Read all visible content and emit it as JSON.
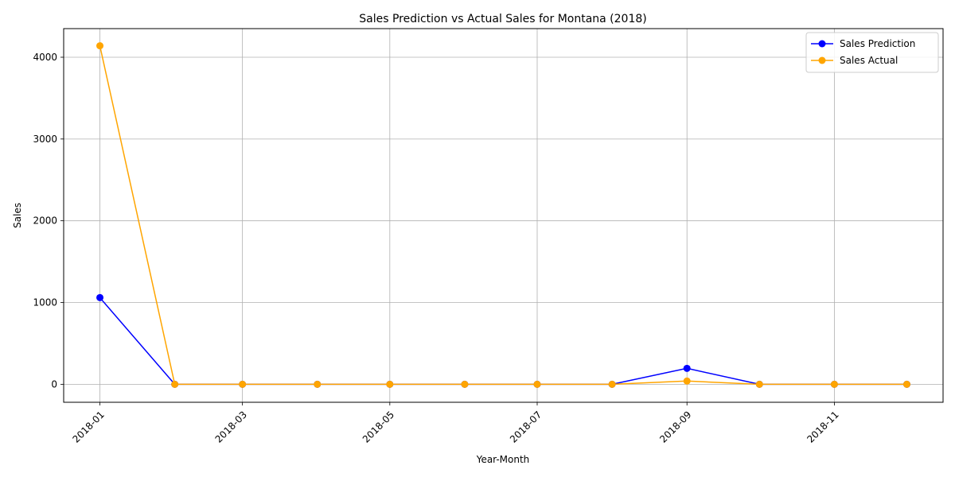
{
  "chart_data": {
    "type": "line",
    "title": "Sales Prediction vs Actual Sales for Montana (2018)",
    "xlabel": "Year-Month",
    "ylabel": "Sales",
    "x": [
      "2018-01-01",
      "2018-02-01",
      "2018-03-01",
      "2018-04-01",
      "2018-05-01",
      "2018-06-01",
      "2018-07-01",
      "2018-08-01",
      "2018-09-01",
      "2018-10-01",
      "2018-11-01",
      "2018-12-01"
    ],
    "xticks": [
      "2018-01",
      "2018-03",
      "2018-05",
      "2018-07",
      "2018-09",
      "2018-11"
    ],
    "xlim": [
      "2017-12-17",
      "2018-12-16"
    ],
    "yticks": [
      0,
      1000,
      2000,
      3000,
      4000
    ],
    "ylim": [
      -220,
      4350
    ],
    "grid": true,
    "legend_position": "top-right",
    "series": [
      {
        "name": "Sales Prediction",
        "color": "#0000ff",
        "values": [
          1060,
          0,
          0,
          0,
          0,
          0,
          0,
          0,
          195,
          0,
          0,
          0
        ]
      },
      {
        "name": "Sales Actual",
        "color": "#ffa500",
        "values": [
          4140,
          0,
          0,
          0,
          0,
          0,
          0,
          0,
          40,
          0,
          0,
          0
        ]
      }
    ]
  }
}
